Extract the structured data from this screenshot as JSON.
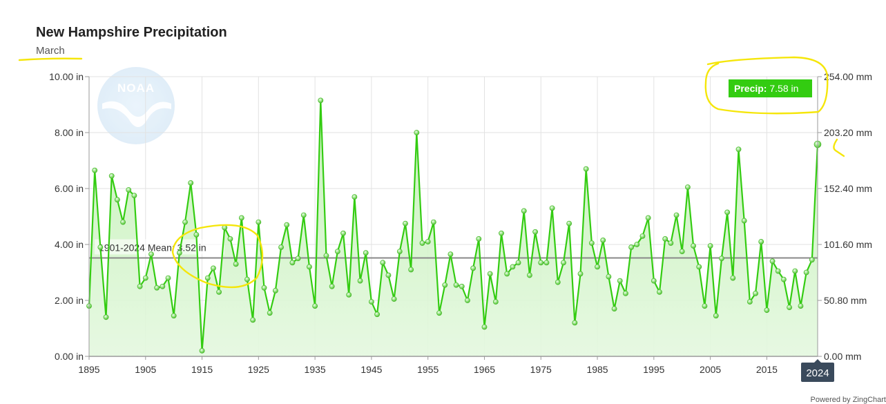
{
  "chart_data": {
    "type": "line",
    "title": "New Hampshire Precipitation",
    "subtitle": "March",
    "x": [
      1895,
      1896,
      1897,
      1898,
      1899,
      1900,
      1901,
      1902,
      1903,
      1904,
      1905,
      1906,
      1907,
      1908,
      1909,
      1910,
      1911,
      1912,
      1913,
      1914,
      1915,
      1916,
      1917,
      1918,
      1919,
      1920,
      1921,
      1922,
      1923,
      1924,
      1925,
      1926,
      1927,
      1928,
      1929,
      1930,
      1931,
      1932,
      1933,
      1934,
      1935,
      1936,
      1937,
      1938,
      1939,
      1940,
      1941,
      1942,
      1943,
      1944,
      1945,
      1946,
      1947,
      1948,
      1949,
      1950,
      1951,
      1952,
      1953,
      1954,
      1955,
      1956,
      1957,
      1958,
      1959,
      1960,
      1961,
      1962,
      1963,
      1964,
      1965,
      1966,
      1967,
      1968,
      1969,
      1970,
      1971,
      1972,
      1973,
      1974,
      1975,
      1976,
      1977,
      1978,
      1979,
      1980,
      1981,
      1982,
      1983,
      1984,
      1985,
      1986,
      1987,
      1988,
      1989,
      1990,
      1991,
      1992,
      1993,
      1994,
      1995,
      1996,
      1997,
      1998,
      1999,
      2000,
      2001,
      2002,
      2003,
      2004,
      2005,
      2006,
      2007,
      2008,
      2009,
      2010,
      2011,
      2012,
      2013,
      2014,
      2015,
      2016,
      2017,
      2018,
      2019,
      2020,
      2021,
      2022,
      2023,
      2024
    ],
    "series": [
      {
        "name": "Precip",
        "values": [
          1.8,
          6.65,
          3.9,
          1.4,
          6.45,
          5.6,
          4.8,
          5.95,
          5.75,
          2.5,
          2.8,
          3.65,
          2.45,
          2.5,
          2.8,
          1.45,
          3.7,
          4.8,
          6.2,
          4.35,
          0.2,
          2.8,
          3.15,
          2.3,
          4.6,
          4.2,
          3.3,
          4.95,
          2.75,
          1.3,
          4.8,
          2.45,
          1.55,
          2.35,
          3.9,
          4.7,
          3.35,
          3.5,
          5.05,
          3.2,
          1.8,
          9.15,
          3.6,
          2.5,
          3.75,
          4.4,
          2.2,
          5.7,
          2.7,
          3.7,
          1.95,
          1.5,
          3.35,
          2.9,
          2.05,
          3.75,
          4.75,
          3.1,
          8.0,
          4.05,
          4.1,
          4.8,
          1.55,
          2.55,
          3.65,
          2.55,
          2.5,
          2.0,
          3.15,
          4.2,
          1.05,
          2.95,
          1.95,
          4.4,
          2.95,
          3.2,
          3.35,
          5.2,
          2.9,
          4.45,
          3.35,
          3.35,
          5.3,
          2.65,
          3.35,
          4.75,
          1.2,
          2.95,
          6.7,
          4.05,
          3.2,
          4.15,
          2.85,
          1.7,
          2.7,
          2.25,
          3.9,
          4.0,
          4.3,
          4.95,
          2.7,
          2.3,
          4.2,
          4.05,
          5.05,
          3.75,
          6.05,
          3.95,
          3.2,
          1.8,
          3.95,
          1.45,
          3.5,
          5.15,
          2.8,
          7.4,
          4.85,
          1.95,
          2.25,
          4.1,
          1.65,
          3.4,
          3.05,
          2.75,
          1.75,
          3.05,
          1.8,
          3.0,
          3.45,
          7.58
        ]
      }
    ],
    "mean": {
      "label": "1901-2024 Mean: 3.52 in",
      "value": 3.52
    },
    "ylim": [
      0,
      10
    ],
    "y_ticks": [
      "0.00 in",
      "2.00 in",
      "4.00 in",
      "6.00 in",
      "8.00 in",
      "10.00 in"
    ],
    "y2_ticks": [
      "0.00 mm",
      "50.80 mm",
      "101.60 mm",
      "152.40 mm",
      "203.20 mm",
      "254.00 mm"
    ],
    "x_ticks": [
      "1895",
      "1905",
      "1915",
      "1925",
      "1935",
      "1945",
      "1955",
      "1965",
      "1975",
      "1985",
      "1995",
      "2005",
      "2015"
    ],
    "xlim": [
      1895,
      2024
    ],
    "highlight": {
      "year": "2024"
    },
    "tooltip": {
      "label": "Precip:",
      "value": "7.58 in"
    },
    "grid": true,
    "colors": {
      "line": "#33cc11",
      "area_top": "#bff0b0",
      "area_bottom": "#e4f8df",
      "mean_line": "#888888",
      "tooltip_bg": "#33cc11",
      "highlight_bg": "#3a4a5c",
      "annotation": "#f5e60a"
    }
  },
  "footer": {
    "powered_by": "Powered by ZingChart"
  },
  "logo": {
    "text": "NOAA"
  }
}
